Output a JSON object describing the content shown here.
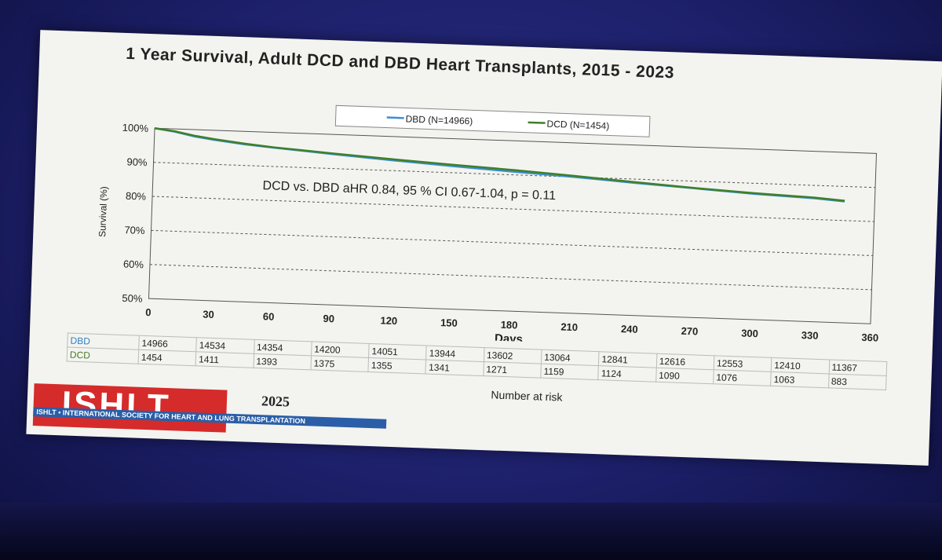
{
  "slide": {
    "title": "1 Year Survival, Adult DCD and DBD Heart Transplants, 2015 - 2023",
    "annotation": "DCD vs. DBD aHR 0.84, 95 % CI 0.67-1.04, p = 0.11",
    "risk_title": "Number at risk"
  },
  "logo": {
    "word": "ISHLT",
    "tagline": "ISHLT • INTERNATIONAL SOCIETY FOR HEART AND LUNG TRANSPLANTATION",
    "year": "2025",
    "color_red": "#d52b2b",
    "color_blue": "#2a5ea8"
  },
  "chart_data": {
    "type": "line",
    "xlabel": "Days",
    "ylabel": "Survival (%)",
    "xlim": [
      0,
      360
    ],
    "ylim": [
      50,
      100
    ],
    "x_ticks": [
      "0",
      "30",
      "60",
      "90",
      "120",
      "150",
      "180",
      "210",
      "240",
      "270",
      "300",
      "330",
      "360"
    ],
    "y_ticks": [
      "50%",
      "60%",
      "70%",
      "80%",
      "90%",
      "100%"
    ],
    "grid": "horizontal dashed",
    "legend_position": "top",
    "series": [
      {
        "name": "DBD (N=14966)",
        "color": "#3a8fd6",
        "x": [
          0,
          10,
          20,
          30,
          45,
          60,
          90,
          120,
          150,
          180,
          210,
          240,
          270,
          300,
          330,
          345
        ],
        "values": [
          100,
          99.2,
          98.0,
          97.2,
          96.2,
          95.5,
          94.2,
          93.0,
          91.9,
          90.9,
          90.0,
          88.9,
          87.9,
          86.9,
          86.2,
          85.6
        ]
      },
      {
        "name": "DCD (N=1454)",
        "color": "#3f7f2a",
        "x": [
          0,
          10,
          20,
          30,
          45,
          60,
          90,
          120,
          150,
          180,
          210,
          240,
          270,
          300,
          330,
          345
        ],
        "values": [
          100,
          99.3,
          98.2,
          97.4,
          96.4,
          95.6,
          94.4,
          93.3,
          92.3,
          91.4,
          90.3,
          89.1,
          88.0,
          87.1,
          86.4,
          85.8
        ]
      }
    ],
    "risk_table": {
      "rows": [
        {
          "label": "DBD",
          "values": [
            "14966",
            "14534",
            "14354",
            "14200",
            "14051",
            "13944",
            "13602",
            "13064",
            "12841",
            "12616",
            "12553",
            "12410",
            "11367"
          ]
        },
        {
          "label": "DCD",
          "values": [
            "1454",
            "1411",
            "1393",
            "1375",
            "1355",
            "1341",
            "1271",
            "1159",
            "1124",
            "1090",
            "1076",
            "1063",
            "883"
          ]
        }
      ]
    }
  }
}
